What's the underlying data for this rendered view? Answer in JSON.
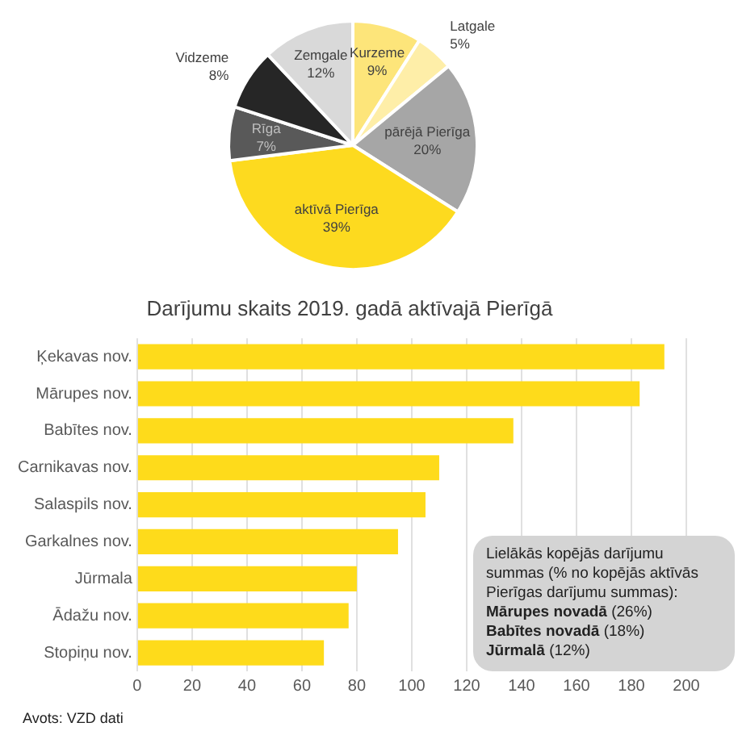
{
  "chart_data": [
    {
      "type": "pie",
      "categories": [
        "Kurzeme",
        "Latgale",
        "pārējā Pierīga",
        "aktīvā Pierīga",
        "Rīga",
        "Vidzeme",
        "Zemgale"
      ],
      "values": [
        9,
        5,
        20,
        39,
        7,
        8,
        12
      ],
      "colors": [
        "#fde57a",
        "#feeea8",
        "#a6a6a6",
        "#fdda1f",
        "#595959",
        "#262626",
        "#d9d9d9"
      ],
      "value_labels": [
        "9%",
        "5%",
        "20%",
        "39%",
        "7%",
        "8%",
        "12%"
      ]
    },
    {
      "type": "bar",
      "orientation": "horizontal",
      "title": "Darījumu skaits 2019. gadā aktīvajā Pierīgā",
      "categories": [
        "Ķekavas nov.",
        "Mārupes nov.",
        "Babītes nov.",
        "Carnikavas nov.",
        "Salaspils nov.",
        "Garkalnes nov.",
        "Jūrmala",
        "Ādažu nov.",
        "Stopiņu nov."
      ],
      "values": [
        192,
        183,
        137,
        110,
        105,
        95,
        80,
        77,
        68
      ],
      "color": "#fedb1b",
      "xlim": [
        0,
        200
      ],
      "xticks": [
        0,
        20,
        40,
        60,
        80,
        100,
        120,
        140,
        160,
        180,
        200
      ],
      "grid": "x",
      "annotations": [
        "Lielākās kopējās darījumu summas (% no kopējās aktīvās Pierīgas darījumu summas):",
        "Mārupes novadā (26%)",
        "Babītes novadā (18%)",
        "Jūrmalā (12%)",
        "Avots: VZD dati"
      ]
    }
  ]
}
